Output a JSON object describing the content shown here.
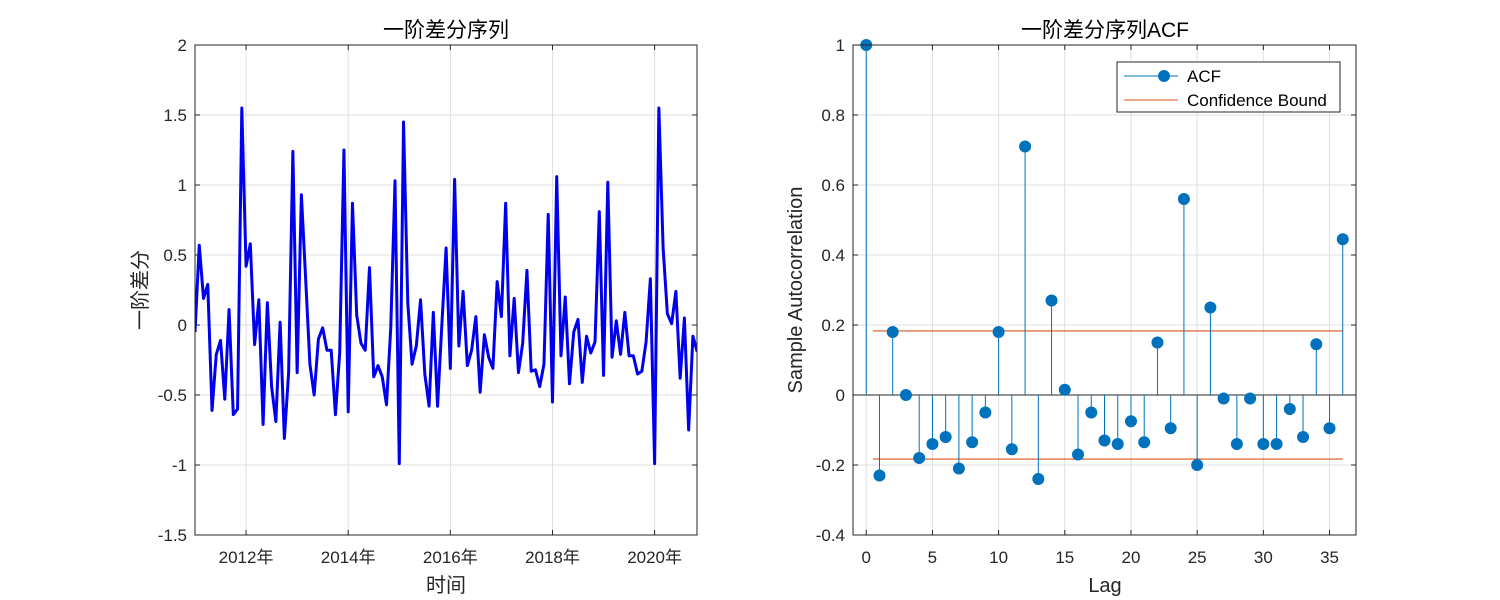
{
  "chart_data": [
    {
      "type": "line",
      "title": "一阶差分序列",
      "xlabel": "时间",
      "ylabel": "一阶差分",
      "xlim": [
        2011.0,
        2020.83
      ],
      "ylim": [
        -1.5,
        2
      ],
      "yticks": [
        -1.5,
        -1,
        -0.5,
        0,
        0.5,
        1,
        1.5,
        2
      ],
      "xticks": [
        {
          "value": 2012.0,
          "label": "2012年"
        },
        {
          "value": 2014.0,
          "label": "2014年"
        },
        {
          "value": 2016.0,
          "label": "2016年"
        },
        {
          "value": 2018.0,
          "label": "2018年"
        },
        {
          "value": 2020.0,
          "label": "2020年"
        }
      ],
      "grid": true,
      "color": "#0000ee",
      "x_start": 2011.0,
      "x_step_months": 1,
      "values": [
        -0.05,
        0.57,
        0.19,
        0.29,
        -0.61,
        -0.21,
        -0.11,
        -0.53,
        0.11,
        -0.64,
        -0.6,
        1.55,
        0.42,
        0.58,
        -0.14,
        0.18,
        -0.71,
        0.16,
        -0.44,
        -0.69,
        0.02,
        -0.81,
        -0.34,
        1.24,
        -0.34,
        0.93,
        0.33,
        -0.28,
        -0.5,
        -0.1,
        -0.02,
        -0.18,
        -0.18,
        -0.64,
        -0.2,
        1.25,
        -0.62,
        0.87,
        0.07,
        -0.13,
        -0.18,
        0.41,
        -0.37,
        -0.29,
        -0.37,
        -0.57,
        -0.02,
        1.03,
        -0.99,
        1.45,
        0.16,
        -0.28,
        -0.15,
        0.18,
        -0.35,
        -0.58,
        0.09,
        -0.58,
        0.0,
        0.55,
        -0.31,
        1.04,
        -0.15,
        0.24,
        -0.29,
        -0.18,
        0.06,
        -0.48,
        -0.07,
        -0.23,
        -0.31,
        0.31,
        0.06,
        0.87,
        -0.22,
        0.19,
        -0.34,
        -0.13,
        0.39,
        -0.33,
        -0.32,
        -0.44,
        -0.28,
        0.79,
        -0.55,
        1.06,
        -0.22,
        0.2,
        -0.42,
        -0.05,
        0.04,
        -0.41,
        -0.08,
        -0.2,
        -0.12,
        0.81,
        -0.36,
        1.02,
        -0.23,
        0.03,
        -0.21,
        0.09,
        -0.22,
        -0.22,
        -0.35,
        -0.33,
        -0.12,
        0.33,
        -0.99,
        1.55,
        0.55,
        0.08,
        0.01,
        0.24,
        -0.38,
        0.05,
        -0.75,
        -0.08,
        -0.19
      ]
    },
    {
      "type": "stem",
      "title": "一阶差分序列ACF",
      "xlabel": "Lag",
      "ylabel": "Sample Autocorrelation",
      "xlim": [
        -1,
        37
      ],
      "ylim": [
        -0.4,
        1
      ],
      "xticks": [
        0,
        5,
        10,
        15,
        20,
        25,
        30,
        35
      ],
      "yticks": [
        -0.4,
        -0.2,
        0,
        0.2,
        0.4,
        0.6,
        0.8,
        1
      ],
      "grid": true,
      "legend": {
        "position": "top-right",
        "entries": [
          "ACF",
          "Confidence Bound"
        ]
      },
      "acf_color": "#0072bd",
      "bound_color": "#d95319",
      "confidence_bound": 0.183,
      "lags": [
        0,
        1,
        2,
        3,
        4,
        5,
        6,
        7,
        8,
        9,
        10,
        11,
        12,
        13,
        14,
        15,
        16,
        17,
        18,
        19,
        20,
        21,
        22,
        23,
        24,
        25,
        26,
        27,
        28,
        29,
        30,
        31,
        32,
        33,
        34,
        35,
        36
      ],
      "values": [
        1.0,
        -0.23,
        0.18,
        0.0,
        -0.18,
        -0.14,
        -0.12,
        -0.21,
        -0.135,
        -0.05,
        0.18,
        -0.155,
        0.71,
        -0.24,
        0.27,
        0.015,
        -0.17,
        -0.05,
        -0.13,
        -0.14,
        -0.075,
        -0.135,
        0.15,
        -0.095,
        0.56,
        -0.2,
        0.25,
        -0.01,
        -0.14,
        -0.01,
        -0.14,
        -0.14,
        -0.04,
        -0.12,
        0.145,
        -0.095,
        0.445
      ]
    }
  ]
}
